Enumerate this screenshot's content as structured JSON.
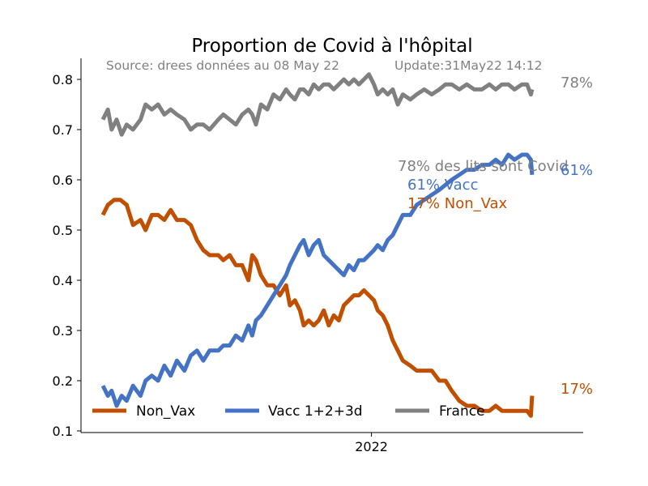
{
  "chart_data": {
    "type": "line",
    "title": "Proportion de Covid à l'hôpital",
    "source_text": "Source: drees données au 08 May 22",
    "update_text": "Update:31May22 14:12",
    "xlabel": "",
    "ylabel": "",
    "x_ticks": [
      {
        "label": "2022",
        "date": "2022-01-01"
      }
    ],
    "x_range": [
      "2021-06-01",
      "2022-05-31"
    ],
    "ylim": [
      0.1,
      0.84
    ],
    "y_ticks": [
      0.1,
      0.2,
      0.3,
      0.4,
      0.5,
      0.6,
      0.7,
      0.8
    ],
    "grid": false,
    "legend": {
      "placement": "bottom-left",
      "columns": 3
    },
    "annotations": {
      "lits": "78% des lits sont Covid",
      "vacc": "61% Vacc",
      "nonvax": "17% Non_Vax",
      "france_end": "78%",
      "vacc_end": "61%",
      "nonvax_end": "17%"
    },
    "series": [
      {
        "name": "Non_Vax",
        "color": "#c14f00",
        "points": [
          [
            "2021-06-01",
            0.53
          ],
          [
            "2021-06-05",
            0.55
          ],
          [
            "2021-06-10",
            0.56
          ],
          [
            "2021-06-15",
            0.56
          ],
          [
            "2021-06-20",
            0.55
          ],
          [
            "2021-06-25",
            0.51
          ],
          [
            "2021-07-01",
            0.52
          ],
          [
            "2021-07-05",
            0.5
          ],
          [
            "2021-07-10",
            0.53
          ],
          [
            "2021-07-15",
            0.53
          ],
          [
            "2021-07-20",
            0.52
          ],
          [
            "2021-07-25",
            0.54
          ],
          [
            "2021-07-30",
            0.52
          ],
          [
            "2021-08-05",
            0.52
          ],
          [
            "2021-08-10",
            0.51
          ],
          [
            "2021-08-15",
            0.48
          ],
          [
            "2021-08-20",
            0.46
          ],
          [
            "2021-08-25",
            0.45
          ],
          [
            "2021-09-01",
            0.45
          ],
          [
            "2021-09-05",
            0.44
          ],
          [
            "2021-09-10",
            0.45
          ],
          [
            "2021-09-15",
            0.43
          ],
          [
            "2021-09-20",
            0.43
          ],
          [
            "2021-09-25",
            0.4
          ],
          [
            "2021-09-28",
            0.45
          ],
          [
            "2021-10-01",
            0.44
          ],
          [
            "2021-10-05",
            0.41
          ],
          [
            "2021-10-10",
            0.39
          ],
          [
            "2021-10-15",
            0.39
          ],
          [
            "2021-10-20",
            0.37
          ],
          [
            "2021-10-25",
            0.39
          ],
          [
            "2021-10-28",
            0.35
          ],
          [
            "2021-11-01",
            0.36
          ],
          [
            "2021-11-05",
            0.34
          ],
          [
            "2021-11-08",
            0.31
          ],
          [
            "2021-11-12",
            0.32
          ],
          [
            "2021-11-16",
            0.31
          ],
          [
            "2021-11-20",
            0.32
          ],
          [
            "2021-11-24",
            0.34
          ],
          [
            "2021-11-28",
            0.31
          ],
          [
            "2021-12-02",
            0.33
          ],
          [
            "2021-12-06",
            0.32
          ],
          [
            "2021-12-10",
            0.35
          ],
          [
            "2021-12-14",
            0.36
          ],
          [
            "2021-12-18",
            0.37
          ],
          [
            "2021-12-22",
            0.37
          ],
          [
            "2021-12-26",
            0.38
          ],
          [
            "2021-12-30",
            0.37
          ],
          [
            "2022-01-03",
            0.36
          ],
          [
            "2022-01-06",
            0.34
          ],
          [
            "2022-01-10",
            0.33
          ],
          [
            "2022-01-14",
            0.31
          ],
          [
            "2022-01-18",
            0.28
          ],
          [
            "2022-01-22",
            0.26
          ],
          [
            "2022-01-26",
            0.24
          ],
          [
            "2022-02-01",
            0.23
          ],
          [
            "2022-02-06",
            0.22
          ],
          [
            "2022-02-12",
            0.22
          ],
          [
            "2022-02-18",
            0.22
          ],
          [
            "2022-02-24",
            0.2
          ],
          [
            "2022-03-01",
            0.2
          ],
          [
            "2022-03-06",
            0.18
          ],
          [
            "2022-03-12",
            0.16
          ],
          [
            "2022-03-18",
            0.15
          ],
          [
            "2022-03-24",
            0.15
          ],
          [
            "2022-03-30",
            0.14
          ],
          [
            "2022-04-05",
            0.14
          ],
          [
            "2022-04-10",
            0.15
          ],
          [
            "2022-04-15",
            0.14
          ],
          [
            "2022-04-20",
            0.14
          ],
          [
            "2022-04-25",
            0.14
          ],
          [
            "2022-05-01",
            0.14
          ],
          [
            "2022-05-05",
            0.14
          ],
          [
            "2022-05-08",
            0.13
          ],
          [
            "2022-05-09",
            0.17
          ]
        ]
      },
      {
        "name": "Vacc 1+2+3d",
        "color": "#4472c4",
        "points": [
          [
            "2021-06-01",
            0.19
          ],
          [
            "2021-06-05",
            0.17
          ],
          [
            "2021-06-08",
            0.18
          ],
          [
            "2021-06-12",
            0.15
          ],
          [
            "2021-06-16",
            0.17
          ],
          [
            "2021-06-20",
            0.16
          ],
          [
            "2021-06-25",
            0.19
          ],
          [
            "2021-07-01",
            0.17
          ],
          [
            "2021-07-05",
            0.2
          ],
          [
            "2021-07-10",
            0.21
          ],
          [
            "2021-07-15",
            0.2
          ],
          [
            "2021-07-20",
            0.23
          ],
          [
            "2021-07-25",
            0.21
          ],
          [
            "2021-07-30",
            0.24
          ],
          [
            "2021-08-05",
            0.22
          ],
          [
            "2021-08-10",
            0.25
          ],
          [
            "2021-08-15",
            0.26
          ],
          [
            "2021-08-20",
            0.24
          ],
          [
            "2021-08-25",
            0.26
          ],
          [
            "2021-09-01",
            0.26
          ],
          [
            "2021-09-05",
            0.27
          ],
          [
            "2021-09-10",
            0.27
          ],
          [
            "2021-09-15",
            0.29
          ],
          [
            "2021-09-20",
            0.28
          ],
          [
            "2021-09-25",
            0.31
          ],
          [
            "2021-09-28",
            0.29
          ],
          [
            "2021-10-01",
            0.32
          ],
          [
            "2021-10-05",
            0.33
          ],
          [
            "2021-10-10",
            0.35
          ],
          [
            "2021-10-15",
            0.37
          ],
          [
            "2021-10-20",
            0.39
          ],
          [
            "2021-10-25",
            0.41
          ],
          [
            "2021-10-28",
            0.43
          ],
          [
            "2021-11-01",
            0.45
          ],
          [
            "2021-11-05",
            0.47
          ],
          [
            "2021-11-08",
            0.48
          ],
          [
            "2021-11-12",
            0.45
          ],
          [
            "2021-11-16",
            0.47
          ],
          [
            "2021-11-20",
            0.48
          ],
          [
            "2021-11-24",
            0.45
          ],
          [
            "2021-11-28",
            0.44
          ],
          [
            "2021-12-02",
            0.43
          ],
          [
            "2021-12-06",
            0.42
          ],
          [
            "2021-12-10",
            0.41
          ],
          [
            "2021-12-14",
            0.43
          ],
          [
            "2021-12-18",
            0.42
          ],
          [
            "2021-12-22",
            0.44
          ],
          [
            "2021-12-26",
            0.44
          ],
          [
            "2021-12-30",
            0.45
          ],
          [
            "2022-01-03",
            0.46
          ],
          [
            "2022-01-06",
            0.47
          ],
          [
            "2022-01-10",
            0.46
          ],
          [
            "2022-01-14",
            0.48
          ],
          [
            "2022-01-18",
            0.49
          ],
          [
            "2022-01-22",
            0.51
          ],
          [
            "2022-01-26",
            0.53
          ],
          [
            "2022-02-01",
            0.53
          ],
          [
            "2022-02-06",
            0.55
          ],
          [
            "2022-02-12",
            0.56
          ],
          [
            "2022-02-18",
            0.57
          ],
          [
            "2022-02-24",
            0.58
          ],
          [
            "2022-03-01",
            0.59
          ],
          [
            "2022-03-06",
            0.6
          ],
          [
            "2022-03-12",
            0.61
          ],
          [
            "2022-03-18",
            0.62
          ],
          [
            "2022-03-24",
            0.62
          ],
          [
            "2022-03-30",
            0.63
          ],
          [
            "2022-04-05",
            0.63
          ],
          [
            "2022-04-10",
            0.64
          ],
          [
            "2022-04-15",
            0.63
          ],
          [
            "2022-04-20",
            0.65
          ],
          [
            "2022-04-25",
            0.64
          ],
          [
            "2022-05-01",
            0.65
          ],
          [
            "2022-05-05",
            0.65
          ],
          [
            "2022-05-08",
            0.64
          ],
          [
            "2022-05-09",
            0.61
          ]
        ]
      },
      {
        "name": "France",
        "color": "#808080",
        "points": [
          [
            "2021-06-01",
            0.72
          ],
          [
            "2021-06-05",
            0.74
          ],
          [
            "2021-06-08",
            0.7
          ],
          [
            "2021-06-12",
            0.72
          ],
          [
            "2021-06-16",
            0.69
          ],
          [
            "2021-06-20",
            0.71
          ],
          [
            "2021-06-25",
            0.7
          ],
          [
            "2021-07-01",
            0.72
          ],
          [
            "2021-07-05",
            0.75
          ],
          [
            "2021-07-10",
            0.74
          ],
          [
            "2021-07-15",
            0.75
          ],
          [
            "2021-07-20",
            0.73
          ],
          [
            "2021-07-25",
            0.74
          ],
          [
            "2021-07-30",
            0.73
          ],
          [
            "2021-08-05",
            0.72
          ],
          [
            "2021-08-10",
            0.7
          ],
          [
            "2021-08-15",
            0.71
          ],
          [
            "2021-08-20",
            0.71
          ],
          [
            "2021-08-25",
            0.7
          ],
          [
            "2021-09-01",
            0.72
          ],
          [
            "2021-09-05",
            0.73
          ],
          [
            "2021-09-10",
            0.72
          ],
          [
            "2021-09-15",
            0.71
          ],
          [
            "2021-09-20",
            0.73
          ],
          [
            "2021-09-25",
            0.74
          ],
          [
            "2021-09-28",
            0.73
          ],
          [
            "2021-10-01",
            0.71
          ],
          [
            "2021-10-05",
            0.75
          ],
          [
            "2021-10-10",
            0.74
          ],
          [
            "2021-10-15",
            0.77
          ],
          [
            "2021-10-20",
            0.76
          ],
          [
            "2021-10-25",
            0.78
          ],
          [
            "2021-10-28",
            0.77
          ],
          [
            "2021-11-01",
            0.76
          ],
          [
            "2021-11-05",
            0.78
          ],
          [
            "2021-11-08",
            0.78
          ],
          [
            "2021-11-12",
            0.77
          ],
          [
            "2021-11-16",
            0.79
          ],
          [
            "2021-11-20",
            0.78
          ],
          [
            "2021-11-24",
            0.79
          ],
          [
            "2021-11-28",
            0.79
          ],
          [
            "2021-12-02",
            0.78
          ],
          [
            "2021-12-06",
            0.79
          ],
          [
            "2021-12-10",
            0.8
          ],
          [
            "2021-12-14",
            0.79
          ],
          [
            "2021-12-18",
            0.8
          ],
          [
            "2021-12-22",
            0.79
          ],
          [
            "2021-12-26",
            0.8
          ],
          [
            "2021-12-30",
            0.81
          ],
          [
            "2022-01-03",
            0.79
          ],
          [
            "2022-01-06",
            0.77
          ],
          [
            "2022-01-10",
            0.78
          ],
          [
            "2022-01-14",
            0.77
          ],
          [
            "2022-01-18",
            0.78
          ],
          [
            "2022-01-22",
            0.75
          ],
          [
            "2022-01-26",
            0.77
          ],
          [
            "2022-02-01",
            0.76
          ],
          [
            "2022-02-06",
            0.77
          ],
          [
            "2022-02-12",
            0.78
          ],
          [
            "2022-02-18",
            0.77
          ],
          [
            "2022-02-24",
            0.78
          ],
          [
            "2022-03-01",
            0.79
          ],
          [
            "2022-03-06",
            0.79
          ],
          [
            "2022-03-12",
            0.78
          ],
          [
            "2022-03-18",
            0.79
          ],
          [
            "2022-03-24",
            0.78
          ],
          [
            "2022-03-30",
            0.78
          ],
          [
            "2022-04-05",
            0.79
          ],
          [
            "2022-04-10",
            0.78
          ],
          [
            "2022-04-15",
            0.79
          ],
          [
            "2022-04-20",
            0.79
          ],
          [
            "2022-04-25",
            0.78
          ],
          [
            "2022-05-01",
            0.79
          ],
          [
            "2022-05-05",
            0.79
          ],
          [
            "2022-05-08",
            0.77
          ],
          [
            "2022-05-09",
            0.78
          ]
        ]
      }
    ]
  }
}
